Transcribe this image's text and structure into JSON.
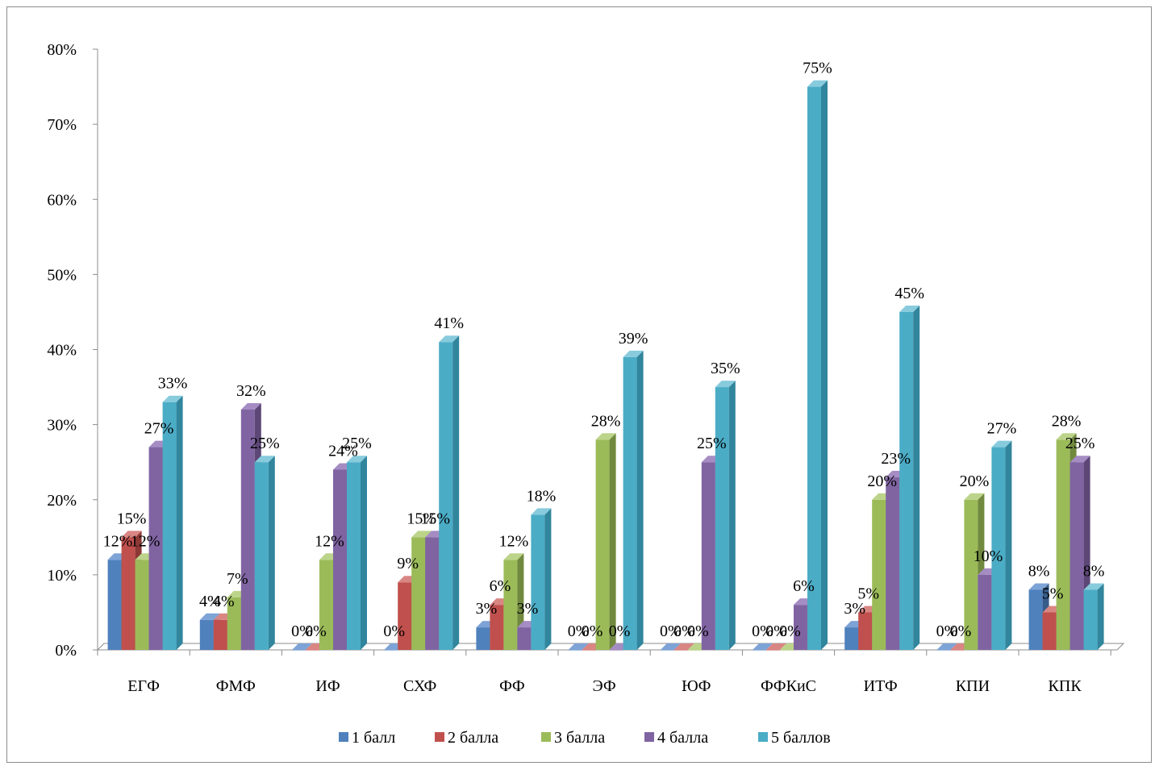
{
  "chart_data": {
    "type": "bar",
    "categories": [
      "ЕГФ",
      "ФМФ",
      "ИФ",
      "СХФ",
      "ФФ",
      "ЭФ",
      "ЮФ",
      "ФФКиС",
      "ИТФ",
      "КПИ",
      "КПК"
    ],
    "series": [
      {
        "name": "1 балл",
        "color": "#4f81bd",
        "side": "#385d8a",
        "top": "#7ea3d6",
        "values": [
          12,
          4,
          0,
          0,
          3,
          0,
          0,
          0,
          3,
          0,
          8
        ],
        "labels": [
          "12%",
          "4%",
          "0%",
          "0%",
          "3%",
          "0%",
          "0%",
          "0%",
          "3%",
          "0%",
          "8%"
        ]
      },
      {
        "name": "2 балла",
        "color": "#c0504d",
        "side": "#8c3836",
        "top": "#d98683",
        "values": [
          15,
          4,
          0,
          9,
          6,
          0,
          0,
          0,
          5,
          0,
          5
        ],
        "labels": [
          "15%",
          "4%",
          "0%",
          "9%",
          "6%",
          "0%",
          "0%",
          "0%",
          "5%",
          "0%",
          "5%"
        ]
      },
      {
        "name": "3 балла",
        "color": "#9bbb59",
        "side": "#71893f",
        "top": "#bcd48a",
        "values": [
          12,
          7,
          12,
          15,
          12,
          28,
          0,
          0,
          20,
          20,
          28
        ],
        "labels": [
          "12%",
          "7%",
          "12%",
          "15%",
          "12%",
          "28%",
          "0%",
          "0%",
          "20%",
          "20%",
          "28%"
        ]
      },
      {
        "name": "4 балла",
        "color": "#8064a2",
        "side": "#5c4776",
        "top": "#a58cc3",
        "values": [
          27,
          32,
          24,
          15,
          3,
          0,
          25,
          6,
          23,
          10,
          25
        ],
        "labels": [
          "27%",
          "32%",
          "24%",
          "15%",
          "3%",
          "0%",
          "25%",
          "6%",
          "23%",
          "10%",
          "25%"
        ]
      },
      {
        "name": "5 баллов",
        "color": "#4bacc6",
        "side": "#31859c",
        "top": "#87cbdd",
        "values": [
          33,
          25,
          25,
          41,
          18,
          39,
          35,
          75,
          45,
          27,
          8
        ],
        "labels": [
          "33%",
          "25%",
          "25%",
          "41%",
          "18%",
          "39%",
          "35%",
          "75%",
          "45%",
          "27%",
          "8%"
        ]
      }
    ],
    "y_ticks": [
      "0%",
      "10%",
      "20%",
      "30%",
      "40%",
      "50%",
      "60%",
      "70%",
      "80%"
    ],
    "ylim": [
      0,
      80
    ],
    "grid": false,
    "legend_position": "bottom",
    "title": "",
    "xlabel": "",
    "ylabel": ""
  }
}
